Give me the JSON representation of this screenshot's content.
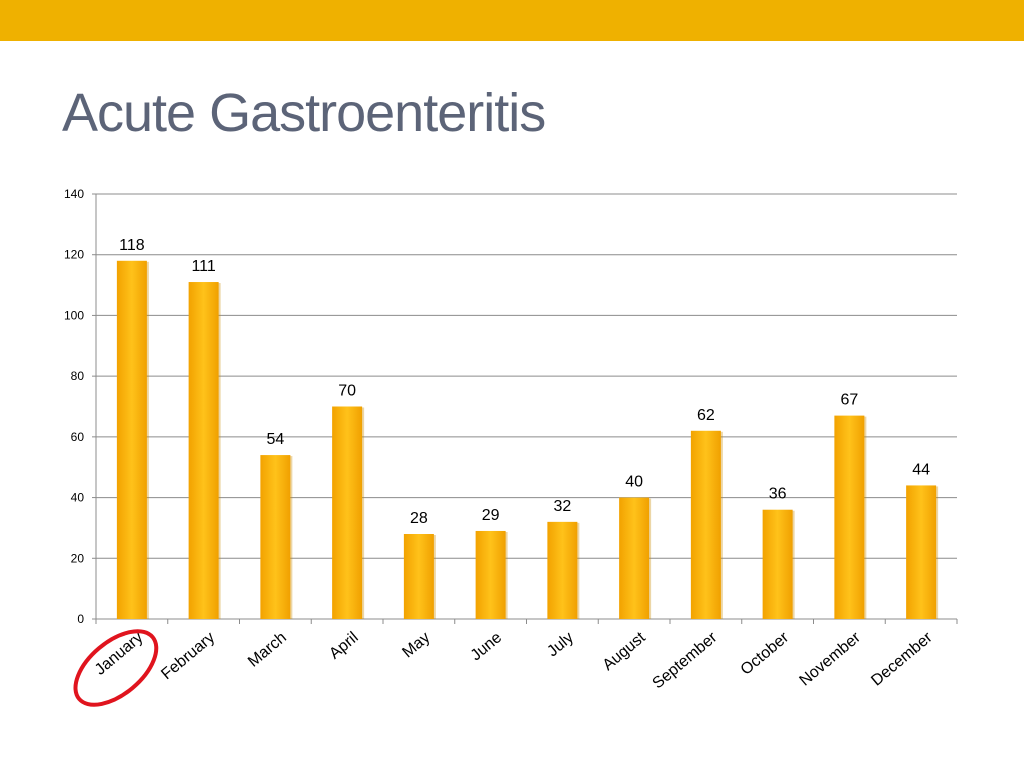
{
  "slide": {
    "title": "Acute Gastroenteritis",
    "accent_color": "#efb100",
    "title_color": "#5c6478",
    "highlight_circle_color": "#e0141e"
  },
  "chart_data": {
    "type": "bar",
    "title": "",
    "xlabel": "",
    "ylabel": "",
    "categories": [
      "January",
      "February",
      "March",
      "April",
      "May",
      "June",
      "July",
      "August",
      "September",
      "October",
      "November",
      "December"
    ],
    "values": [
      118,
      111,
      54,
      70,
      28,
      29,
      32,
      40,
      62,
      36,
      67,
      44
    ],
    "ylim": [
      0,
      140
    ],
    "yticks": [
      0,
      20,
      40,
      60,
      80,
      100,
      120,
      140
    ],
    "grid": true,
    "legend": "none",
    "data_labels": true,
    "bar_color": "#f5a800",
    "highlighted_category": "January"
  }
}
